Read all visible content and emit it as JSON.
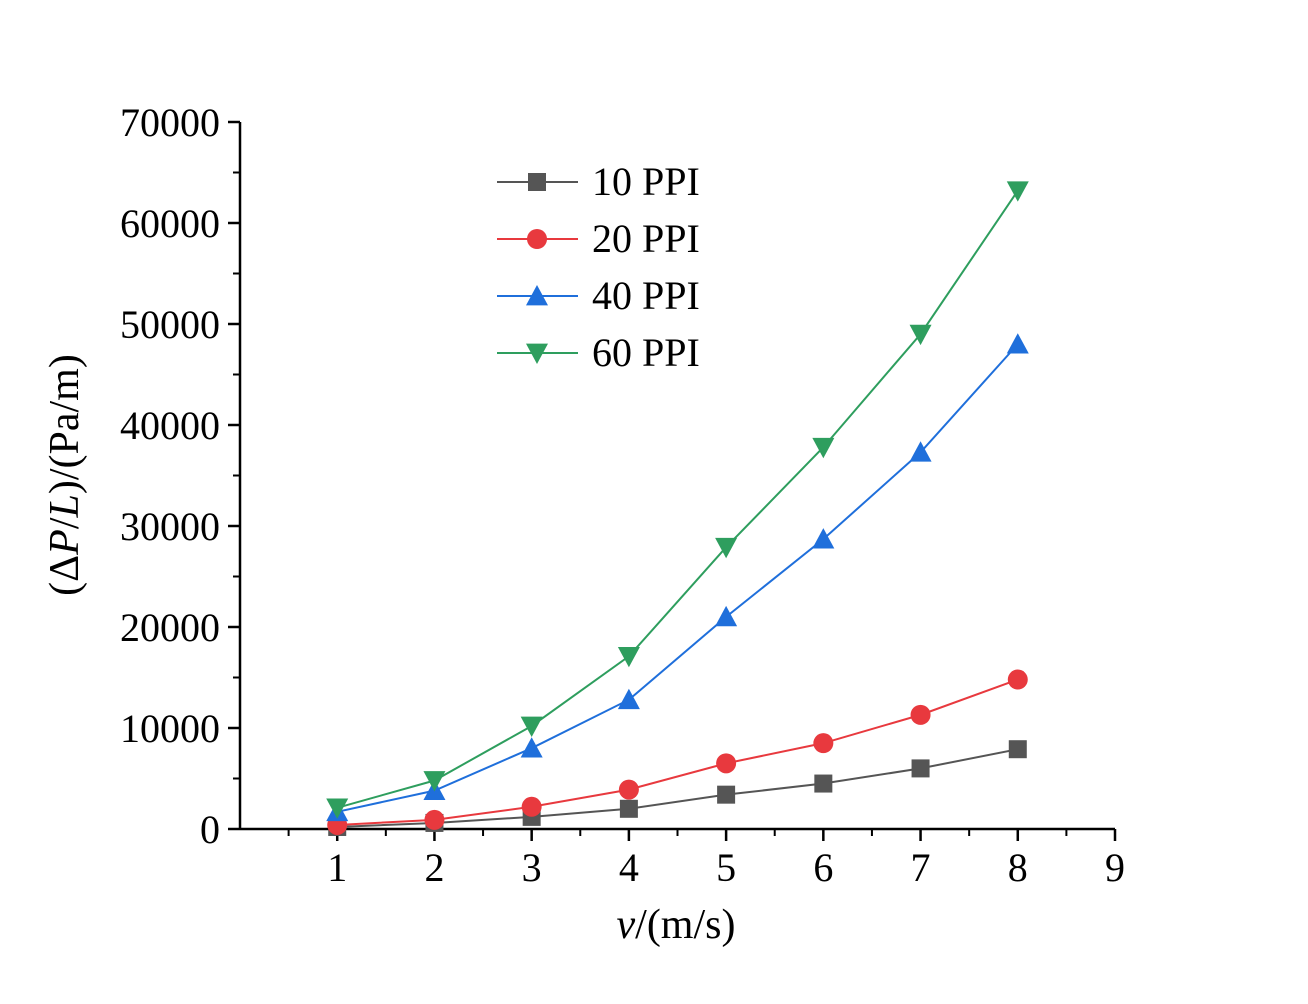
{
  "chart_data": {
    "type": "line",
    "x": [
      1,
      2,
      3,
      4,
      5,
      6,
      7,
      8
    ],
    "series": [
      {
        "name": "10 PPI",
        "color": "#555555",
        "marker": "square",
        "values": [
          200,
          600,
          1200,
          2000,
          3400,
          4500,
          6000,
          7900
        ]
      },
      {
        "name": "20 PPI",
        "color": "#e8393e",
        "marker": "circle",
        "values": [
          400,
          900,
          2200,
          3900,
          6500,
          8500,
          11300,
          14800
        ]
      },
      {
        "name": "40 PPI",
        "color": "#1f6fdb",
        "marker": "triangle-up",
        "values": [
          1700,
          3800,
          8000,
          12800,
          21000,
          28700,
          37300,
          48000
        ]
      },
      {
        "name": "60 PPI",
        "color": "#2e9e5e",
        "marker": "triangle-down",
        "values": [
          2100,
          4800,
          10200,
          17100,
          27900,
          37800,
          49000,
          63200
        ]
      }
    ],
    "xlim": [
      0,
      9
    ],
    "ylim": [
      0,
      70000
    ],
    "xticks": [
      1,
      2,
      3,
      4,
      5,
      6,
      7,
      8,
      9
    ],
    "yticks": [
      0,
      10000,
      20000,
      30000,
      40000,
      50000,
      60000,
      70000
    ],
    "xlabel": {
      "var": "v",
      "unit": "/(m/s)"
    },
    "ylabel": {
      "open": "(Δ",
      "p": "P",
      "slash": "/",
      "l": "L",
      "close": ")/(Pa/m)"
    },
    "legend_position": "top-left",
    "grid": false
  }
}
